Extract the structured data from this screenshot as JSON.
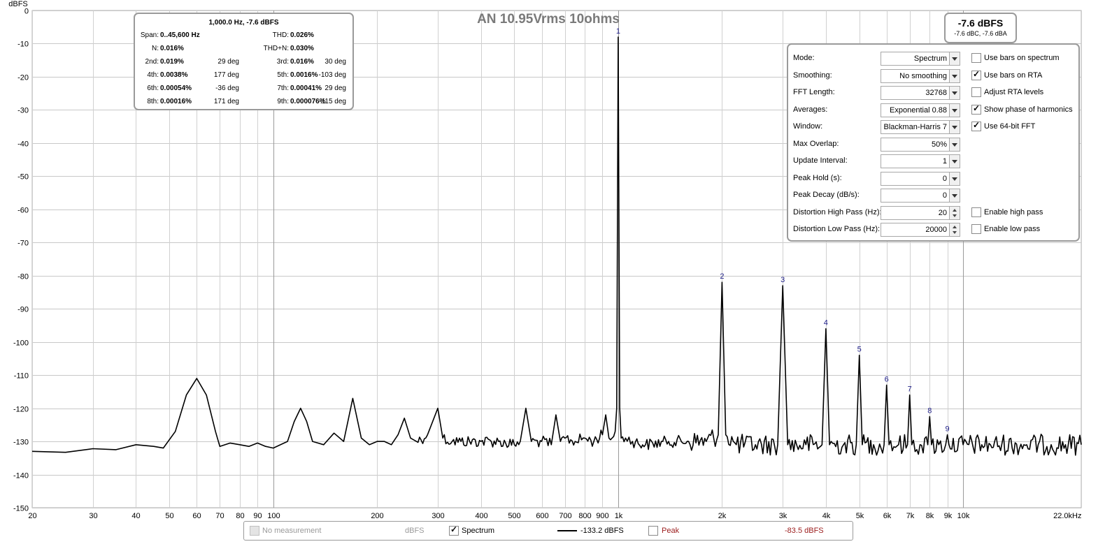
{
  "chart_data": {
    "type": "line",
    "title": "AN 10.95Vrms 10ohms",
    "ylabel": "dBFS",
    "xscale": "log",
    "xlim": [
      20,
      22000
    ],
    "ylim": [
      -150,
      0
    ],
    "yticks": [
      0,
      -10,
      -20,
      -30,
      -40,
      -50,
      -60,
      -70,
      -80,
      -90,
      -100,
      -110,
      -120,
      -130,
      -140,
      -150
    ],
    "ytick_labels": [
      "0",
      "-10",
      "-20",
      "-30",
      "-40",
      "-50",
      "-60",
      "-70",
      "-80",
      "-90",
      "-100",
      "-110",
      "-120",
      "-130",
      "-140",
      "-150"
    ],
    "xticks": [
      20,
      30,
      40,
      50,
      60,
      70,
      80,
      90,
      100,
      200,
      300,
      400,
      500,
      600,
      700,
      800,
      900,
      1000,
      2000,
      3000,
      4000,
      5000,
      6000,
      7000,
      8000,
      9000,
      10000,
      22000
    ],
    "xtick_labels": [
      "20",
      "30",
      "40",
      "50",
      "60",
      "70",
      "80",
      "90",
      "100",
      "200",
      "300",
      "400",
      "500",
      "600",
      "700",
      "800",
      "900",
      "1k",
      "2k",
      "3k",
      "4k",
      "5k",
      "6k",
      "7k",
      "8k",
      "9k",
      "10k",
      "22.0kHz"
    ],
    "grid": true,
    "noise_floor_db": -131,
    "series": [
      {
        "name": "Spectrum",
        "color": "#000000",
        "x": [
          20,
          25,
          30,
          35,
          40,
          45,
          48,
          52,
          56,
          60,
          64,
          68,
          70,
          75,
          80,
          85,
          90,
          95,
          100,
          110,
          115,
          120,
          125,
          130,
          140,
          150,
          160,
          170,
          180,
          190,
          200,
          210,
          220,
          230,
          240,
          250,
          260,
          280,
          300,
          310,
          330,
          350,
          400,
          450,
          500,
          520,
          540,
          560,
          600,
          640,
          660,
          680,
          700,
          750,
          800,
          850,
          900,
          920,
          940,
          960,
          980,
          990,
          1000,
          1010,
          1020,
          1050,
          1100,
          1200,
          1400,
          1600,
          1800,
          1950,
          2000,
          2050,
          2200,
          2500,
          2900,
          3000,
          3100,
          3500,
          3900,
          4000,
          4100,
          4500,
          4900,
          5000,
          5100,
          5500,
          5900,
          6000,
          6100,
          6500,
          6900,
          7000,
          7100,
          7500,
          7900,
          8000,
          8100,
          8500,
          8900,
          9000,
          9100,
          10000,
          12000,
          15000,
          18000,
          22000
        ],
        "y": [
          -133,
          -133.3,
          -132.2,
          -132.5,
          -131,
          -131.5,
          -132,
          -127,
          -116,
          -111,
          -116,
          -127,
          -131.5,
          -130.5,
          -131,
          -131.5,
          -130.5,
          -131.5,
          -132,
          -130,
          -124,
          -120,
          -124,
          -130,
          -131,
          -127.5,
          -130,
          -117,
          -129,
          -131,
          -130,
          -130,
          -131,
          -128,
          -123,
          -129,
          -130,
          -128,
          -120,
          -129,
          -130,
          -130,
          -130,
          -130,
          -131,
          -130,
          -120,
          -130,
          -130,
          -131,
          -122,
          -130,
          -129,
          -130,
          -129,
          -130,
          -128,
          -122,
          -129,
          -129,
          -127,
          -120,
          -8,
          -120,
          -129,
          -129,
          -130,
          -131,
          -130,
          -130,
          -130,
          -128,
          -82,
          -128,
          -131,
          -131,
          -131,
          -83,
          -131,
          -131,
          -131,
          -96,
          -131,
          -131,
          -131,
          -104,
          -131,
          -131,
          -131,
          -113,
          -131,
          -131,
          -131,
          -116,
          -131,
          -131,
          -131,
          -122.5,
          -131,
          -131,
          -131,
          -128,
          -131,
          -131,
          -131,
          -131,
          -131,
          -131
        ]
      }
    ],
    "harmonics": [
      {
        "label": "1",
        "freq": 1000,
        "level": -8
      },
      {
        "label": "2",
        "freq": 2000,
        "level": -82
      },
      {
        "label": "3",
        "freq": 3000,
        "level": -83
      },
      {
        "label": "4",
        "freq": 4000,
        "level": -96
      },
      {
        "label": "5",
        "freq": 5000,
        "level": -104
      },
      {
        "label": "6",
        "freq": 6000,
        "level": -113
      },
      {
        "label": "7",
        "freq": 7000,
        "level": -116
      },
      {
        "label": "8",
        "freq": 8000,
        "level": -122.5
      },
      {
        "label": "9",
        "freq": 9000,
        "level": -128
      }
    ]
  },
  "stats_panel": {
    "header": "1,000.0 Hz, -7.6 dBFS",
    "span_label": "Span:",
    "span_value": "0..45,600 Hz",
    "thd_label": "THD:",
    "thd_value": "0.026%",
    "n_label": "N:",
    "n_value": "0.016%",
    "thdn_label": "THD+N:",
    "thdn_value": "0.030%",
    "harmonics": [
      {
        "l1": "2nd:",
        "v1": "0.019%",
        "p1": "29 deg",
        "l2": "3rd:",
        "v2": "0.016%",
        "p2": "30 deg"
      },
      {
        "l1": "4th:",
        "v1": "0.0038%",
        "p1": "177 deg",
        "l2": "5th:",
        "v2": "0.0016%",
        "p2": "-103 deg"
      },
      {
        "l1": "6th:",
        "v1": "0.00054%",
        "p1": "-36 deg",
        "l2": "7th:",
        "v2": "0.00041%",
        "p2": "29 deg"
      },
      {
        "l1": "8th:",
        "v1": "0.00016%",
        "p1": "171 deg",
        "l2": "9th:",
        "v2": "0.000076%",
        "p2": "-115 deg"
      }
    ]
  },
  "level_box": {
    "main": "-7.6 dBFS",
    "sub": "-7.6 dBC, -7.6 dBA"
  },
  "controls": [
    {
      "label": "Mode:",
      "value": "Spectrum",
      "type": "dropdown",
      "check_label": "Use bars on spectrum",
      "checked": false
    },
    {
      "label": "Smoothing:",
      "value": "No  smoothing",
      "type": "dropdown",
      "check_label": "Use bars on RTA",
      "checked": true
    },
    {
      "label": "FFT Length:",
      "value": "32768",
      "type": "dropdown",
      "check_label": "Adjust RTA levels",
      "checked": false
    },
    {
      "label": "Averages:",
      "value": "Exponential 0.88",
      "type": "dropdown",
      "check_label": "Show phase of harmonics",
      "checked": true
    },
    {
      "label": "Window:",
      "value": "Blackman-Harris 7",
      "type": "dropdown",
      "check_label": "Use 64-bit FFT",
      "checked": true
    },
    {
      "label": "Max Overlap:",
      "value": "50%",
      "type": "dropdown"
    },
    {
      "label": "Update Interval:",
      "value": "1",
      "type": "dropdown"
    },
    {
      "label": "Peak Hold (s):",
      "value": "0",
      "type": "dropdown"
    },
    {
      "label": "Peak Decay (dB/s):",
      "value": "0",
      "type": "dropdown"
    },
    {
      "label": "Distortion High Pass (Hz):",
      "value": "20",
      "type": "spinner",
      "check_label": "Enable high pass",
      "checked": false
    },
    {
      "label": "Distortion Low Pass (Hz):",
      "value": "20000",
      "type": "spinner",
      "check_label": "Enable low pass",
      "checked": false
    }
  ],
  "legend_bar": {
    "no_measurement": "No measurement",
    "unit1": "dBFS",
    "spectrum_label": "Spectrum",
    "spectrum_value": "-133.2 dBFS",
    "peak_label": "Peak",
    "peak_value": "-83.5 dBFS",
    "peak_color": "#9b1b1b"
  }
}
